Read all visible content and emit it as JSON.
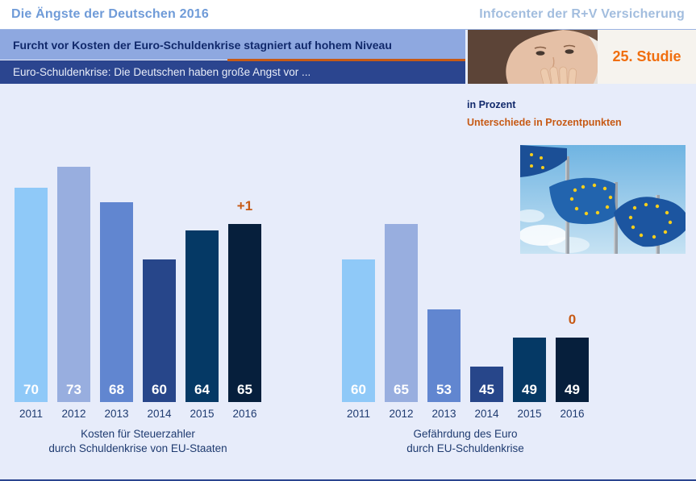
{
  "header": {
    "title": "Die Ängste der Deutschen 2016",
    "brand": "Infocenter der R+V Versicherung",
    "headline": "Furcht vor Kosten der Euro-Schuldenkrise stagniert auf hohem Niveau",
    "subheadline": "Euro-Schuldenkrise: Die Deutschen haben große Angst vor ...",
    "study_badge": "25. Studie"
  },
  "legend": {
    "unit_label": "in Prozent",
    "diff_label": "Unterschiede in Prozentpunkten"
  },
  "images": {
    "woman_photo": "woman-hand-over-mouth-photo",
    "flags_photo": "eu-flags-photo"
  },
  "colors": {
    "background": "#E7ECFA",
    "banner_light": "#8EA8E0",
    "banner_dark": "#2B458F",
    "accent_orange": "#C75A15",
    "studie_orange": "#F06E0F",
    "title_blue": "#6F9BD8",
    "brand_blue": "#A2BDDE",
    "navy_text": "#1F3B70",
    "headline_navy": "#11296B",
    "bar_colors": [
      "#8FC9F8",
      "#98AEDF",
      "#6186D0",
      "#27468A",
      "#053965",
      "#061F3C"
    ]
  },
  "chart_data": [
    {
      "type": "bar",
      "title": "Kosten für Steuerzahler durch Schuldenkrise von EU-Staaten",
      "caption_lines": [
        "Kosten für Steuerzahler",
        "durch Schuldenkrise von EU-Staaten"
      ],
      "categories": [
        "2011",
        "2012",
        "2013",
        "2014",
        "2015",
        "2016"
      ],
      "values": [
        70,
        73,
        68,
        60,
        64,
        65
      ],
      "change_label": "+1",
      "unit": "percent",
      "ylim": [
        40,
        75
      ],
      "grid": false,
      "legend_position": "none",
      "value_labels": "inside-bottom"
    },
    {
      "type": "bar",
      "title": "Gefährdung des Euro durch EU-Schuldenkrise",
      "caption_lines": [
        "Gefährdung des Euro",
        "durch EU-Schuldenkrise"
      ],
      "categories": [
        "2011",
        "2012",
        "2013",
        "2014",
        "2015",
        "2016"
      ],
      "values": [
        60,
        65,
        53,
        45,
        49,
        49
      ],
      "change_label": "0",
      "unit": "percent",
      "ylim": [
        40,
        75
      ],
      "grid": false,
      "legend_position": "none",
      "value_labels": "inside-bottom"
    }
  ]
}
